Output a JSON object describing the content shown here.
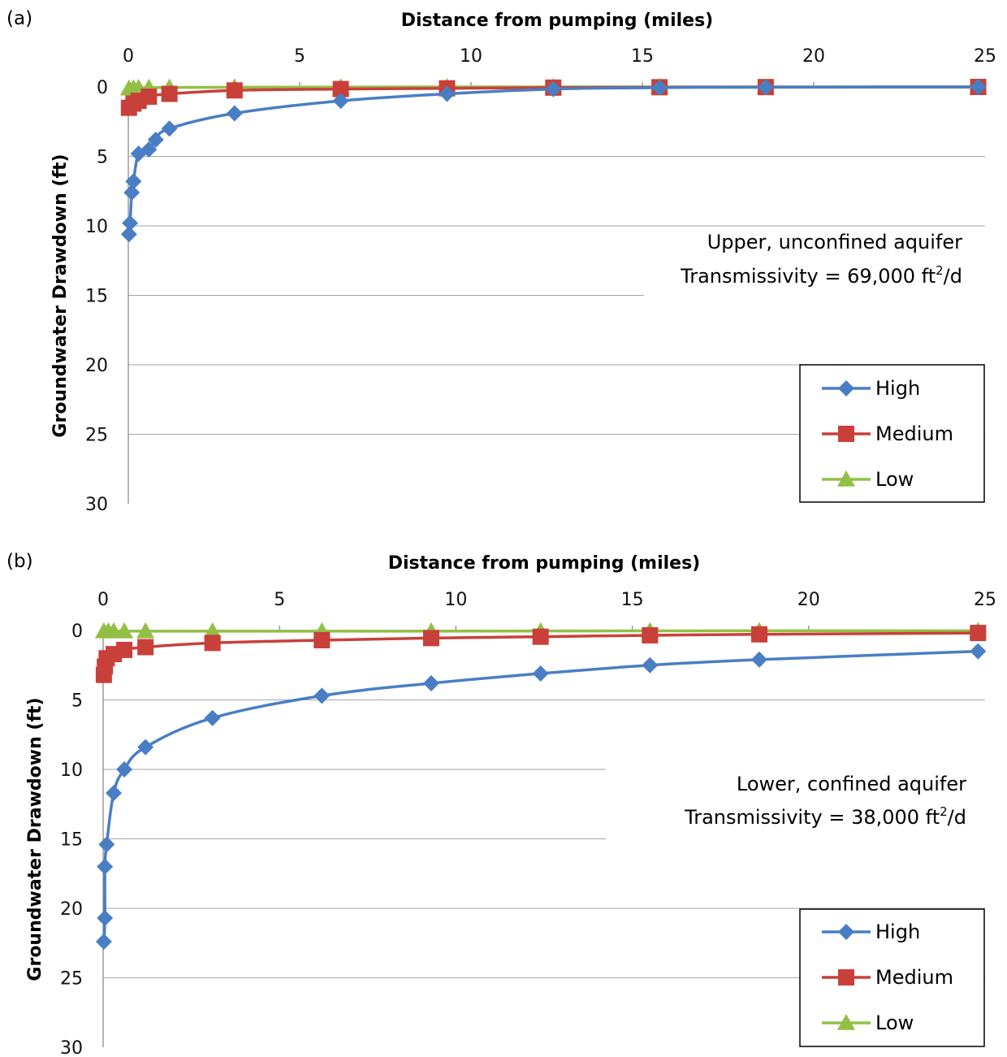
{
  "colors": {
    "high": "#4a7ec4",
    "medium": "#c9403a",
    "low": "#92c045",
    "grid": "#a6a6a6",
    "axis": "#8c8c8c"
  },
  "chart_data": [
    {
      "panel": "(a)",
      "type": "line",
      "xlabel": "Distance from pumping (miles)",
      "ylabel": "Groundwater Drawdown (ft)",
      "xlim": [
        0,
        25
      ],
      "ylim": [
        0,
        30
      ],
      "y_inverted": true,
      "x_axis_position": "top",
      "x_ticks": [
        "0",
        "5",
        "10",
        "15",
        "20",
        "25"
      ],
      "y_ticks": [
        "0",
        "5",
        "10",
        "15",
        "20",
        "25",
        "30"
      ],
      "grid": "horizontal",
      "legend_position": "bottom-right",
      "annotation": {
        "line1": "Upper, unconfined aquifer",
        "line2_prefix": "Transmissivity = 69,000 ft",
        "line2_sup": "2",
        "line2_suffix": "/d"
      },
      "series": [
        {
          "name": "High",
          "color_key": "high",
          "marker": "diamond",
          "points": [
            [
              0.02,
              10.6
            ],
            [
              0.05,
              9.8
            ],
            [
              0.1,
              7.6
            ],
            [
              0.15,
              6.8
            ],
            [
              0.3,
              4.8
            ],
            [
              0.6,
              4.5
            ],
            [
              0.8,
              3.8
            ],
            [
              1.2,
              3.0
            ],
            [
              3.1,
              1.9
            ],
            [
              6.2,
              1.0
            ],
            [
              9.3,
              0.5
            ],
            [
              12.4,
              0.15
            ],
            [
              15.5,
              0.05
            ],
            [
              18.6,
              0.02
            ],
            [
              24.8,
              0.0
            ]
          ]
        },
        {
          "name": "Medium",
          "color_key": "medium",
          "marker": "square",
          "points": [
            [
              0.02,
              1.5
            ],
            [
              0.15,
              1.2
            ],
            [
              0.3,
              1.0
            ],
            [
              0.6,
              0.7
            ],
            [
              1.2,
              0.5
            ],
            [
              3.1,
              0.25
            ],
            [
              6.2,
              0.15
            ],
            [
              9.3,
              0.1
            ],
            [
              12.4,
              0.05
            ],
            [
              15.5,
              0.02
            ],
            [
              18.6,
              0.01
            ],
            [
              24.8,
              0.0
            ]
          ]
        },
        {
          "name": "Low",
          "color_key": "low",
          "marker": "triangle",
          "points": [
            [
              0.02,
              0.1
            ],
            [
              0.15,
              0.08
            ],
            [
              0.3,
              0.06
            ],
            [
              0.6,
              0.05
            ],
            [
              1.2,
              0.04
            ],
            [
              3.1,
              0.02
            ],
            [
              6.2,
              0.01
            ],
            [
              9.3,
              0.0
            ],
            [
              12.4,
              0.0
            ],
            [
              15.5,
              0.0
            ],
            [
              18.6,
              0.0
            ],
            [
              24.8,
              0.0
            ]
          ]
        }
      ]
    },
    {
      "panel": "(b)",
      "type": "line",
      "xlabel": "Distance from pumping (miles)",
      "ylabel": "Groundwater Drawdown (ft)",
      "xlim": [
        0,
        25
      ],
      "ylim": [
        0,
        30
      ],
      "y_inverted": true,
      "x_axis_position": "top",
      "x_ticks": [
        "0",
        "5",
        "10",
        "15",
        "20",
        "25"
      ],
      "y_ticks": [
        "0",
        "5",
        "10",
        "15",
        "20",
        "25",
        "30"
      ],
      "grid": "horizontal",
      "legend_position": "bottom-right",
      "annotation": {
        "line1": "Lower, confined aquifer",
        "line2_prefix": "Transmissivity = 38,000 ft",
        "line2_sup": "2",
        "line2_suffix": "/d"
      },
      "series": [
        {
          "name": "High",
          "color_key": "high",
          "marker": "diamond",
          "points": [
            [
              0.02,
              22.4
            ],
            [
              0.05,
              20.7
            ],
            [
              0.05,
              17.0
            ],
            [
              0.1,
              15.4
            ],
            [
              0.3,
              11.7
            ],
            [
              0.6,
              10.0
            ],
            [
              1.2,
              8.4
            ],
            [
              3.1,
              6.3
            ],
            [
              6.2,
              4.7
            ],
            [
              9.3,
              3.8
            ],
            [
              12.4,
              3.1
            ],
            [
              15.5,
              2.5
            ],
            [
              18.6,
              2.1
            ],
            [
              24.8,
              1.5
            ]
          ]
        },
        {
          "name": "Medium",
          "color_key": "medium",
          "marker": "square",
          "points": [
            [
              0.02,
              3.2
            ],
            [
              0.05,
              2.6
            ],
            [
              0.1,
              2.0
            ],
            [
              0.3,
              1.7
            ],
            [
              0.6,
              1.4
            ],
            [
              1.2,
              1.2
            ],
            [
              3.1,
              0.9
            ],
            [
              6.2,
              0.7
            ],
            [
              9.3,
              0.55
            ],
            [
              12.4,
              0.45
            ],
            [
              15.5,
              0.35
            ],
            [
              18.6,
              0.28
            ],
            [
              24.8,
              0.18
            ]
          ]
        },
        {
          "name": "Low",
          "color_key": "low",
          "marker": "triangle",
          "points": [
            [
              0.02,
              0.05
            ],
            [
              0.15,
              0.05
            ],
            [
              0.3,
              0.05
            ],
            [
              0.6,
              0.05
            ],
            [
              1.2,
              0.05
            ],
            [
              3.1,
              0.05
            ],
            [
              6.2,
              0.05
            ],
            [
              9.3,
              0.05
            ],
            [
              12.4,
              0.04
            ],
            [
              15.5,
              0.03
            ],
            [
              18.6,
              0.02
            ],
            [
              24.8,
              0.02
            ]
          ]
        }
      ]
    }
  ]
}
